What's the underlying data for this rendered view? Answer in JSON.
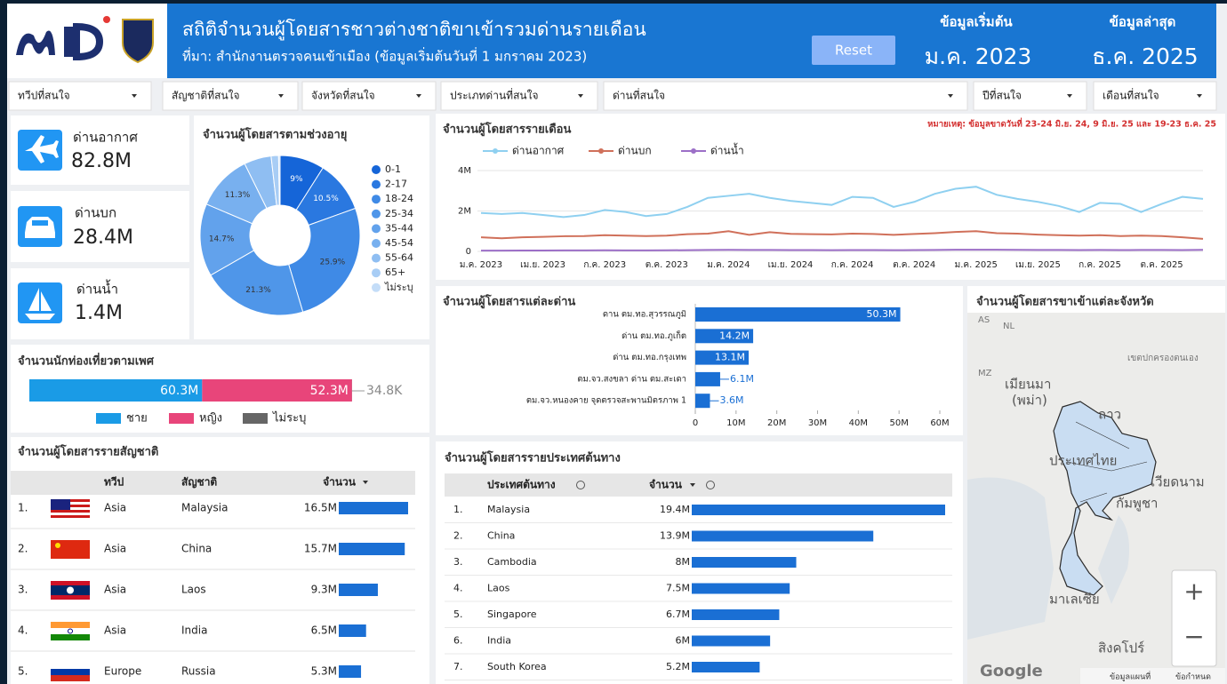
{
  "header": {
    "title": "สถิติจำนวนผู้โดยสารชาวต่างชาติขาเข้ารวมด่านรายเดือน",
    "subtitle": "ที่มา: สำนักงานตรวจคนเข้าเมือง (ข้อมูลเริ่มต้นวันที่ 1 มกราคม 2023)",
    "reset": "Reset",
    "start_label": "ข้อมูลเริ่มต้น",
    "start_value": "ม.ค. 2023",
    "latest_label": "ข้อมูลล่าสุด",
    "latest_value": "ธ.ค. 2025"
  },
  "filters": [
    "ทวีปที่สนใจ",
    "สัญชาติที่สนใจ",
    "จังหวัดที่สนใจ",
    "ประเภทด่านที่สนใจ",
    "ด่านที่สนใจ",
    "ปีที่สนใจ",
    "เดือนที่สนใจ"
  ],
  "kpis": [
    {
      "label": "ด่านอากาศ",
      "value": "82.8M"
    },
    {
      "label": "ด่านบก",
      "value": "28.4M"
    },
    {
      "label": "ด่านน้ำ",
      "value": "1.4M"
    }
  ],
  "chart_data": [
    {
      "type": "donut",
      "title": "จำนวนผู้โดยสารตามช่วงอายุ",
      "categories": [
        "0-1",
        "2-17",
        "18-24",
        "25-34",
        "35-44",
        "45-54",
        "55-64",
        "65+",
        "ไม่ระบุ"
      ],
      "values": [
        9,
        10.5,
        25.9,
        21.3,
        14.7,
        11.3,
        5.5,
        1.5,
        0.3
      ],
      "value_labels": [
        "9%",
        "10.5%",
        "25.9%",
        "21.3%",
        "14.7%",
        "11.3%",
        null,
        null,
        null
      ],
      "colors": [
        "#1565d8",
        "#2a78e0",
        "#3f8ae6",
        "#4f96e9",
        "#62a2ec",
        "#78b0ef",
        "#8fbef2",
        "#a8cdf5",
        "#c4ddf8"
      ]
    },
    {
      "type": "line",
      "title": "จำนวนผู้โดยสารรายเดือน",
      "annotation": "หมายเหตุ: ข้อมูลขาดวันที่ 23-24 มิ.ย. 24, 9 มิ.ย. 25 และ 19-23 ธ.ค. 25",
      "x": [
        "ม.ค. 2023",
        null,
        null,
        "เม.ย. 2023",
        null,
        null,
        "ก.ค. 2023",
        null,
        null,
        "ต.ค. 2023",
        null,
        null,
        "ม.ค. 2024",
        null,
        null,
        "เม.ย. 2024",
        null,
        null,
        "ก.ค. 2024",
        null,
        null,
        "ต.ค. 2024",
        null,
        null,
        "ม.ค. 2025",
        null,
        null,
        "เม.ย. 2025",
        null,
        null,
        "ก.ค. 2025",
        null,
        null,
        "ต.ค. 2025",
        null,
        null
      ],
      "ylim": [
        0,
        4000000
      ],
      "yticks": [
        0,
        {
          "value": 2000000,
          "label": "2M"
        },
        {
          "value": 4000000,
          "label": "4M"
        }
      ],
      "series": [
        {
          "name": "ด่านอากาศ",
          "color": "#8fd0f0",
          "values": [
            1900000,
            1850000,
            1900000,
            1800000,
            1700000,
            1800000,
            2050000,
            1950000,
            1750000,
            1850000,
            2200000,
            2650000,
            2750000,
            2850000,
            2650000,
            2500000,
            2400000,
            2300000,
            2700000,
            2650000,
            2200000,
            2450000,
            2850000,
            3100000,
            3200000,
            2800000,
            2600000,
            2450000,
            2250000,
            1950000,
            2400000,
            2350000,
            1950000,
            2350000,
            2700000,
            2600000
          ]
        },
        {
          "name": "ด่านบก",
          "color": "#d0705a",
          "values": [
            700000,
            650000,
            700000,
            720000,
            750000,
            760000,
            800000,
            780000,
            760000,
            780000,
            850000,
            880000,
            1000000,
            820000,
            950000,
            870000,
            850000,
            840000,
            880000,
            860000,
            820000,
            860000,
            900000,
            960000,
            1000000,
            900000,
            880000,
            830000,
            800000,
            780000,
            800000,
            760000,
            780000,
            760000,
            700000,
            620000
          ]
        },
        {
          "name": "ด่านน้ำ",
          "color": "#9c6fc7",
          "values": [
            40000,
            40000,
            45000,
            45000,
            50000,
            50000,
            55000,
            50000,
            50000,
            55000,
            60000,
            70000,
            75000,
            70000,
            70000,
            65000,
            65000,
            60000,
            65000,
            65000,
            60000,
            65000,
            70000,
            80000,
            85000,
            80000,
            75000,
            70000,
            70000,
            65000,
            70000,
            65000,
            70000,
            70000,
            65000,
            75000
          ]
        }
      ]
    },
    {
      "type": "hbar",
      "title": "จำนวนผู้โดยสารแต่ละด่าน",
      "color": "#1a6fd4",
      "categories": [
        "ดาน ตม.ทอ.สุวรรณภูมิ",
        "ด่าน ตม.ทอ.ภูเก็ต",
        "ด่าน ตม.ทอ.กรุงเทพ",
        "ตม.จว.สงขลา ด่าน ตม.สะเดา",
        "ตม.จว.หนองคาย จุดตรวจสะพานมิตรภาพ 1"
      ],
      "values": [
        50300000,
        14200000,
        13100000,
        6100000,
        3600000
      ],
      "value_labels": [
        "50.3M",
        "14.2M",
        "13.1M",
        "6.1M",
        "3.6M"
      ],
      "xlim": [
        0,
        60000000
      ],
      "xticks": [
        0,
        {
          "value": 10000000,
          "label": "10M"
        },
        {
          "value": 20000000,
          "label": "20M"
        },
        {
          "value": 30000000,
          "label": "30M"
        },
        {
          "value": 40000000,
          "label": "40M"
        },
        {
          "value": 50000000,
          "label": "50M"
        },
        {
          "value": 60000000,
          "label": "60M"
        }
      ]
    },
    {
      "type": "stacked_hbar",
      "title": "จำนวนนักท่องเที่ยวตามเพศ",
      "series": [
        {
          "name": "ชาย",
          "color": "#1a9be6",
          "values": [
            60300000
          ],
          "value_labels": [
            "60.3M"
          ]
        },
        {
          "name": "หญิง",
          "color": "#e8457a",
          "values": [
            52300000
          ],
          "value_labels": [
            "52.3M"
          ]
        },
        {
          "name": "ไม่ระบุ",
          "color": "#666666",
          "values": [
            34800
          ],
          "value_labels": [
            "34.8K"
          ]
        }
      ]
    }
  ],
  "nationality_table": {
    "title": "จำนวนผู้โดยสารรายสัญชาติ",
    "columns": [
      "ทวีป",
      "สัญชาติ",
      "จำนวน"
    ],
    "rows": [
      {
        "rank": "1.",
        "continent": "Asia",
        "nationality": "Malaysia",
        "value": 16500000,
        "value_label": "16.5M"
      },
      {
        "rank": "2.",
        "continent": "Asia",
        "nationality": "China",
        "value": 15700000,
        "value_label": "15.7M"
      },
      {
        "rank": "3.",
        "continent": "Asia",
        "nationality": "Laos",
        "value": 9300000,
        "value_label": "9.3M"
      },
      {
        "rank": "4.",
        "continent": "Asia",
        "nationality": "India",
        "value": 6500000,
        "value_label": "6.5M"
      },
      {
        "rank": "5.",
        "continent": "Europe",
        "nationality": "Russia",
        "value": 5300000,
        "value_label": "5.3M"
      }
    ]
  },
  "origin_table": {
    "title": "จำนวนผู้โดยสารรายประเทศต้นทาง",
    "columns": [
      "ประเทศต้นทาง",
      "จำนวน"
    ],
    "rows": [
      {
        "rank": "1.",
        "country": "Malaysia",
        "value": 19400000,
        "value_label": "19.4M"
      },
      {
        "rank": "2.",
        "country": "China",
        "value": 13900000,
        "value_label": "13.9M"
      },
      {
        "rank": "3.",
        "country": "Cambodia",
        "value": 8000000,
        "value_label": "8M"
      },
      {
        "rank": "4.",
        "country": "Laos",
        "value": 7500000,
        "value_label": "7.5M"
      },
      {
        "rank": "5.",
        "country": "Singapore",
        "value": 6700000,
        "value_label": "6.7M"
      },
      {
        "rank": "6.",
        "country": "India",
        "value": 6000000,
        "value_label": "6M"
      },
      {
        "rank": "7.",
        "country": "South Korea",
        "value": 5200000,
        "value_label": "5.2M"
      }
    ]
  },
  "map": {
    "title": "จำนวนผู้โดยสารขาเข้าแต่ละจังหวัด",
    "labels": [
      "เมียนมา",
      "(พม่า)",
      "ลาว",
      "ประเทศไทย",
      "เวียดนาม",
      "กัมพูชา",
      "มาเลเซีย",
      "สิงคโปร์",
      "เขตปกครองตนเอง",
      "AS",
      "NL",
      "MZ"
    ],
    "logo": "Google",
    "map_data": "ข้อมูลแผนที่",
    "terms": "ข้อกำหนด",
    "zoom_in": "+",
    "zoom_out": "−"
  }
}
